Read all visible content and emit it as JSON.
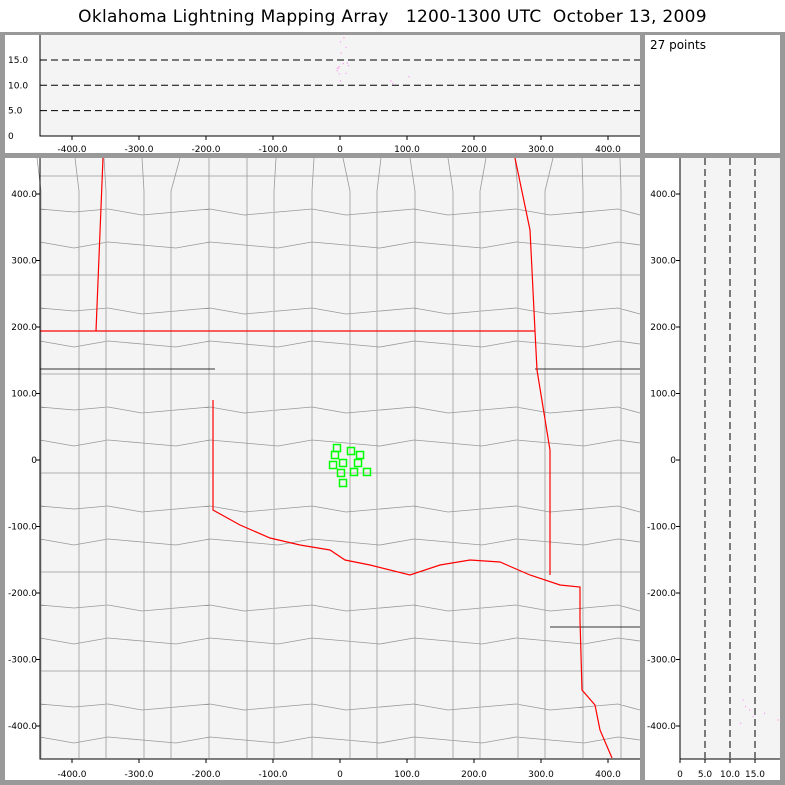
{
  "title": "Oklahoma Lightning Mapping Array   1200-1300 UTC  October 13, 2009",
  "info": {
    "points_label": "27 points"
  },
  "colors": {
    "background": "#999999",
    "plot_bg": "#f4f4f4",
    "state_border": "#ff0000",
    "county_border": "#999999",
    "source": "#00ff00",
    "point": "#ff99ee"
  },
  "chart_data": [
    {
      "type": "scatter",
      "panel": "altitude-vs-east-west",
      "xlim": [
        -450,
        450
      ],
      "ylim": [
        0,
        20
      ],
      "xticks": [
        "-400.0",
        "-300.0",
        "-200.0",
        "-100.0",
        "0",
        "100.0",
        "200.0",
        "300.0",
        "400.0"
      ],
      "yticks": [
        "0",
        "5.0",
        "10.0",
        "15.0"
      ],
      "grid": "dashed horizontal at 5,10,15",
      "x": [
        -3,
        -5,
        -2,
        0,
        5,
        10,
        8,
        -5,
        1,
        12,
        0,
        75,
        78,
        102,
        4,
        -2,
        8
      ],
      "y": [
        13.5,
        13.5,
        13.8,
        18.7,
        19.5,
        14.5,
        12.5,
        13,
        16.5,
        14,
        11,
        11,
        10.5,
        11.8,
        14.4,
        12.4,
        17.6
      ]
    },
    {
      "type": "scatter",
      "panel": "plan-view",
      "xlim": [
        -450,
        450
      ],
      "ylim": [
        -450,
        450
      ],
      "xticks": [
        "-400.0",
        "-300.0",
        "-200.0",
        "-100.0",
        "0",
        "100.0",
        "200.0",
        "300.0",
        "400.0"
      ],
      "yticks": [
        "-400.0",
        "-300.0",
        "-200.0",
        "-100.0",
        "0",
        "100.0",
        "200.0",
        "300.0",
        "400.0"
      ],
      "marker": "open green square",
      "x": [
        -4.5,
        -7.5,
        -10.4,
        4.5,
        16.4,
        29.9,
        26.9,
        1.5,
        20.9,
        40.3,
        4.5
      ],
      "y": [
        18,
        7.5,
        -7.5,
        -4.5,
        13.5,
        7.5,
        -4.5,
        -19.5,
        -18,
        -18,
        -34.6
      ]
    },
    {
      "type": "scatter",
      "panel": "north-south-vs-altitude",
      "xlim": [
        0,
        20
      ],
      "ylim": [
        -450,
        450
      ],
      "xticks": [
        "0",
        "5.0",
        "10.0",
        "15.0"
      ],
      "grid": "dashed vertical at 5,10,15",
      "x": [
        12.5,
        13,
        14.5,
        16.8,
        19.5,
        12,
        13.8
      ],
      "y": [
        -360,
        -370,
        -385,
        -380,
        -390,
        -395,
        -375
      ]
    }
  ]
}
